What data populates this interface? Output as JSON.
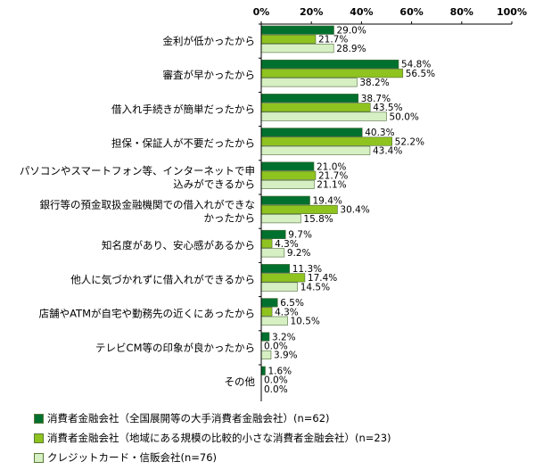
{
  "chart_data": {
    "type": "bar",
    "orientation": "horizontal",
    "xlim": [
      0,
      100
    ],
    "x_ticks": [
      "0%",
      "20%",
      "40%",
      "60%",
      "80%",
      "100%"
    ],
    "categories": [
      [
        "金利が低かったから"
      ],
      [
        "審査が早かったから"
      ],
      [
        "借入れ手続きが簡単だったから"
      ],
      [
        "担保・保証人が不要だったから"
      ],
      [
        "パソコンやスマートフォン等、インターネットで申",
        "込みができるから"
      ],
      [
        "銀行等の預金取扱金融機関での借入れができな",
        "かったから"
      ],
      [
        "知名度があり、安心感があるから"
      ],
      [
        "他人に気づかれずに借入れができるから"
      ],
      [
        "店舗やATMが自宅や勤務先の近くにあったから"
      ],
      [
        "テレビCM等の印象が良かったから"
      ],
      [
        "その他"
      ]
    ],
    "series": [
      {
        "name": "消費者金融会社（全国展開等の大手消費者金融会社）(n=62)",
        "color": "#00702e",
        "values": [
          29.0,
          54.8,
          38.7,
          40.3,
          21.0,
          19.4,
          9.7,
          11.3,
          6.5,
          3.2,
          1.6
        ],
        "labels": [
          "29.0%",
          "54.8%",
          "38.7%",
          "40.3%",
          "21.0%",
          "19.4%",
          "9.7%",
          "11.3%",
          "6.5%",
          "3.2%",
          "1.6%"
        ]
      },
      {
        "name": "消費者金融会社（地域にある規模の比較的小さな消費者金融会社）(n=23)",
        "color": "#8fc31f",
        "values": [
          21.7,
          56.5,
          43.5,
          52.2,
          21.7,
          30.4,
          4.3,
          17.4,
          4.3,
          0.0,
          0.0
        ],
        "labels": [
          "21.7%",
          "56.5%",
          "43.5%",
          "52.2%",
          "21.7%",
          "30.4%",
          "4.3%",
          "17.4%",
          "4.3%",
          "0.0%",
          "0.0%"
        ]
      },
      {
        "name": "クレジットカード・信販会社(n=76)",
        "color": "#d6efc3",
        "values": [
          28.9,
          38.2,
          50.0,
          43.4,
          21.1,
          15.8,
          9.2,
          14.5,
          10.5,
          3.9,
          0.0
        ],
        "labels": [
          "28.9%",
          "38.2%",
          "50.0%",
          "43.4%",
          "21.1%",
          "15.8%",
          "9.2%",
          "14.5%",
          "10.5%",
          "3.9%",
          "0.0%"
        ]
      }
    ],
    "grid": false,
    "legend_position": "bottom-left"
  }
}
